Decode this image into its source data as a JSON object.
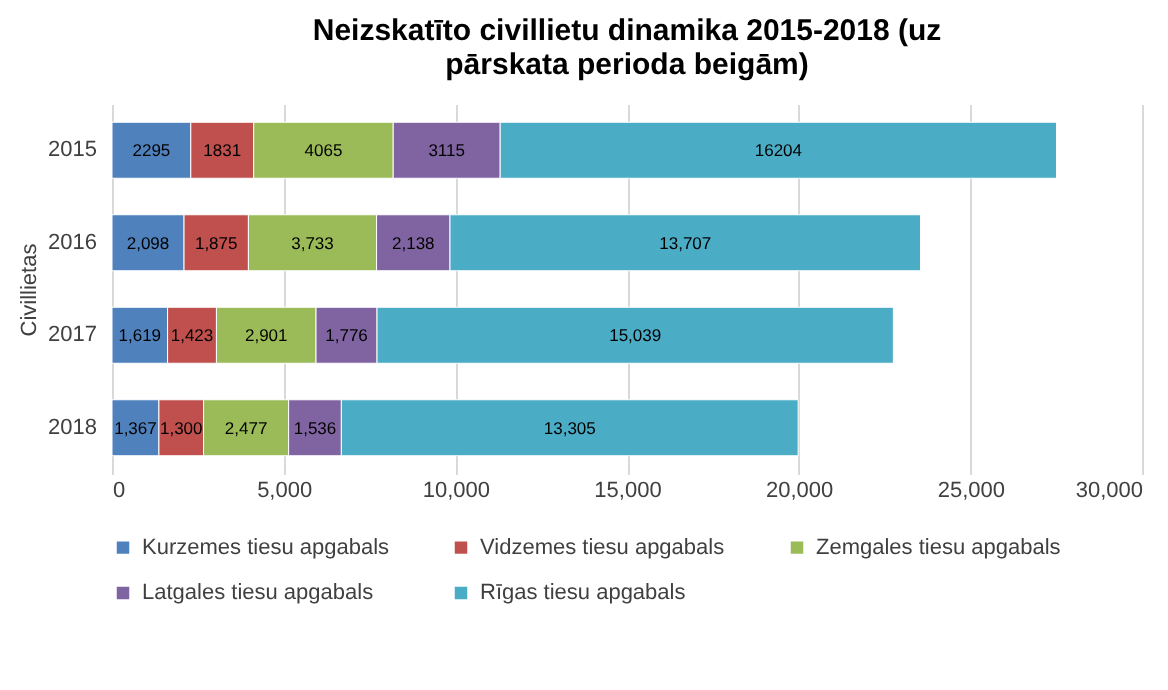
{
  "chart_data": {
    "type": "bar",
    "orientation": "horizontal",
    "stacked": true,
    "title": "Neizskatīto civillietu dinamika 2015-2018 (uz pārskata perioda beigām)",
    "ylabel": "Civillietas",
    "categories": [
      "2015",
      "2016",
      "2017",
      "2018"
    ],
    "series": [
      {
        "name": "Kurzemes tiesu apgabals",
        "color": "#4f81bd",
        "values": [
          2295,
          2098,
          1619,
          1367
        ],
        "value_labels": [
          "2295",
          "2,098",
          "1,619",
          "1,367"
        ]
      },
      {
        "name": "Vidzemes tiesu apgabals",
        "color": "#c0504d",
        "values": [
          1831,
          1875,
          1423,
          1300
        ],
        "value_labels": [
          "1831",
          "1,875",
          "1,423",
          "1,300"
        ]
      },
      {
        "name": "Zemgales tiesu apgabals",
        "color": "#9bbb59",
        "values": [
          4065,
          3733,
          2901,
          2477
        ],
        "value_labels": [
          "4065",
          "3,733",
          "2,901",
          "2,477"
        ]
      },
      {
        "name": "Latgales tiesu apgabals",
        "color": "#8064a2",
        "values": [
          3115,
          2138,
          1776,
          1536
        ],
        "value_labels": [
          "3115",
          "2,138",
          "1,776",
          "1,536"
        ]
      },
      {
        "name": "Rīgas tiesu apgabals",
        "color": "#4bacc6",
        "values": [
          16204,
          13707,
          15039,
          13305
        ],
        "value_labels": [
          "16204",
          "13,707",
          "15,039",
          "13,305"
        ]
      }
    ],
    "xlim": [
      0,
      30000
    ],
    "xticks": [
      0,
      {
        "value": 5000,
        "label": "5,000"
      },
      {
        "value": 10000,
        "label": "10,000"
      },
      {
        "value": 15000,
        "label": "15,000"
      },
      {
        "value": 20000,
        "label": "20,000"
      },
      {
        "value": 25000,
        "label": "25,000"
      },
      {
        "value": 30000,
        "label": "30,000"
      }
    ],
    "grid": "x",
    "legend": "bottom"
  }
}
